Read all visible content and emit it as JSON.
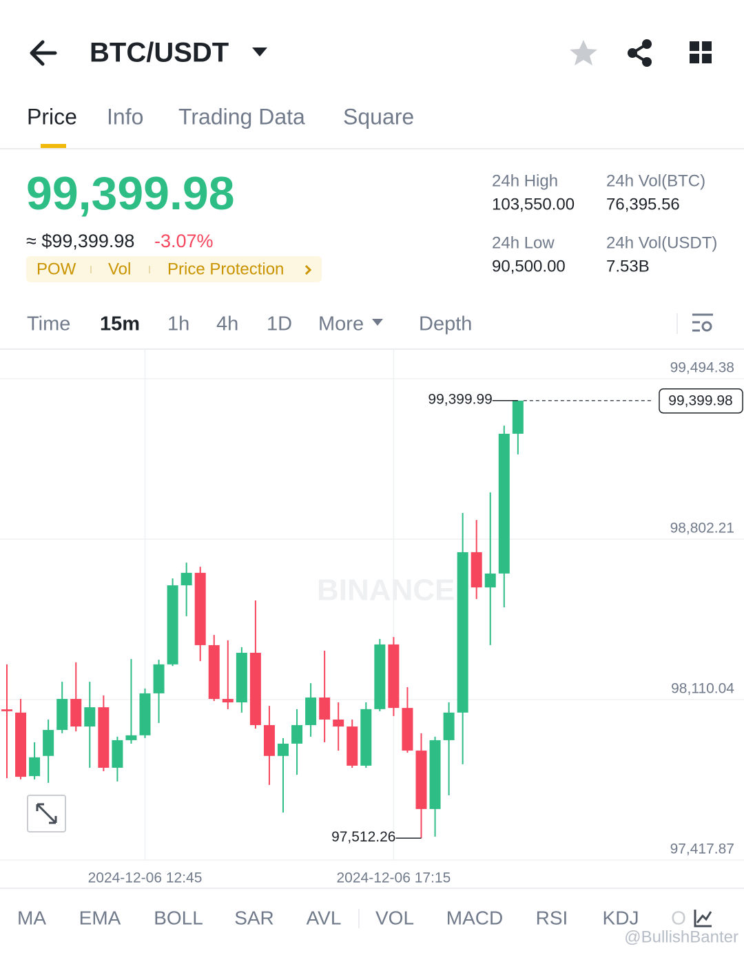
{
  "header": {
    "title": "BTC/USDT"
  },
  "tabs": [
    "Price",
    "Info",
    "Trading Data",
    "Square"
  ],
  "price": {
    "last": "99,399.98",
    "fiat": "≈ $99,399.98",
    "change": "-3.07%",
    "tags": [
      "POW",
      "Vol",
      "Price Protection"
    ]
  },
  "stats": [
    {
      "label": "24h High",
      "value": "103,550.00"
    },
    {
      "label": "24h Vol(BTC)",
      "value": "76,395.56"
    },
    {
      "label": "24h Low",
      "value": "90,500.00"
    },
    {
      "label": "24h Vol(USDT)",
      "value": "7.53B"
    }
  ],
  "intervals": [
    "Time",
    "15m",
    "1h",
    "4h",
    "1D",
    "More",
    "Depth"
  ],
  "indicators": [
    "MA",
    "EMA",
    "BOLL",
    "SAR",
    "AVL",
    "VOL",
    "MACD",
    "RSI",
    "KDJ",
    "O"
  ],
  "watermark": "@BullishBanter",
  "chart_data": {
    "type": "candlestick",
    "watermark": "BINANCE",
    "categories": [
      null,
      null,
      null,
      null,
      null,
      null,
      null,
      null,
      null,
      null,
      "2024-12-06 12:45",
      null,
      null,
      null,
      null,
      null,
      null,
      null,
      null,
      null,
      null,
      null,
      null,
      null,
      null,
      null,
      null,
      null,
      "2024-12-06 17:15",
      null,
      null,
      null,
      null,
      null,
      null,
      null,
      null,
      null
    ],
    "open": [
      98068,
      98054,
      97780,
      97867,
      97979,
      98113,
      97994,
      98077,
      97816,
      97935,
      97956,
      98137,
      98262,
      98603,
      98657,
      98345,
      98113,
      98098,
      98312,
      98000,
      97867,
      97920,
      98000,
      98119,
      98024,
      97994,
      97825,
      98069,
      98348,
      98074,
      97890,
      97638,
      97935,
      98054,
      98746,
      98594,
      98654,
      99257
    ],
    "high": [
      98262,
      98113,
      97926,
      98024,
      98187,
      98271,
      98187,
      98128,
      97950,
      98285,
      98158,
      98282,
      98633,
      98701,
      98683,
      98389,
      98366,
      98336,
      98538,
      98083,
      97944,
      98069,
      98181,
      98321,
      98098,
      98024,
      98098,
      98372,
      98380,
      98164,
      97965,
      97950,
      98098,
      98915,
      98885,
      99004,
      99292,
      99399.99
    ],
    "low": [
      97771,
      97766,
      97766,
      97751,
      97965,
      97973,
      97816,
      97801,
      97757,
      97920,
      97944,
      98009,
      98255,
      98470,
      98276,
      98104,
      98069,
      98054,
      97985,
      97742,
      97623,
      97786,
      97950,
      97926,
      97890,
      97816,
      97816,
      98060,
      98039,
      97881,
      97512.26,
      97519,
      97697,
      97831,
      98544,
      98345,
      98508,
      99168
    ],
    "close": [
      98060,
      97777,
      97861,
      97979,
      98113,
      97994,
      98077,
      97816,
      97935,
      97956,
      98137,
      98262,
      98603,
      98657,
      98345,
      98113,
      98098,
      98312,
      98000,
      97867,
      97920,
      98000,
      98119,
      98024,
      97994,
      97825,
      98069,
      98348,
      98074,
      97890,
      97638,
      97935,
      98054,
      98746,
      98594,
      98654,
      99257,
      99399.98
    ],
    "up_color": "#2ebd85",
    "down_color": "#f6465d",
    "ylim": [
      97296.07,
      99622.12
    ],
    "yticks": [
      {
        "value": 99494.38,
        "label": "99,494.38"
      },
      {
        "value": 98802.21,
        "label": "98,802.21"
      },
      {
        "value": 98110.04,
        "label": "98,110.04"
      },
      {
        "value": 97417.87,
        "label": "97,417.87"
      }
    ],
    "grid": true,
    "annotations": [
      {
        "value": 99399.99,
        "label": "99,399.99"
      },
      {
        "value": 97512.26,
        "label": "97,512.26"
      }
    ],
    "last_price": {
      "value": 99399.98,
      "label": "99,399.98"
    }
  }
}
